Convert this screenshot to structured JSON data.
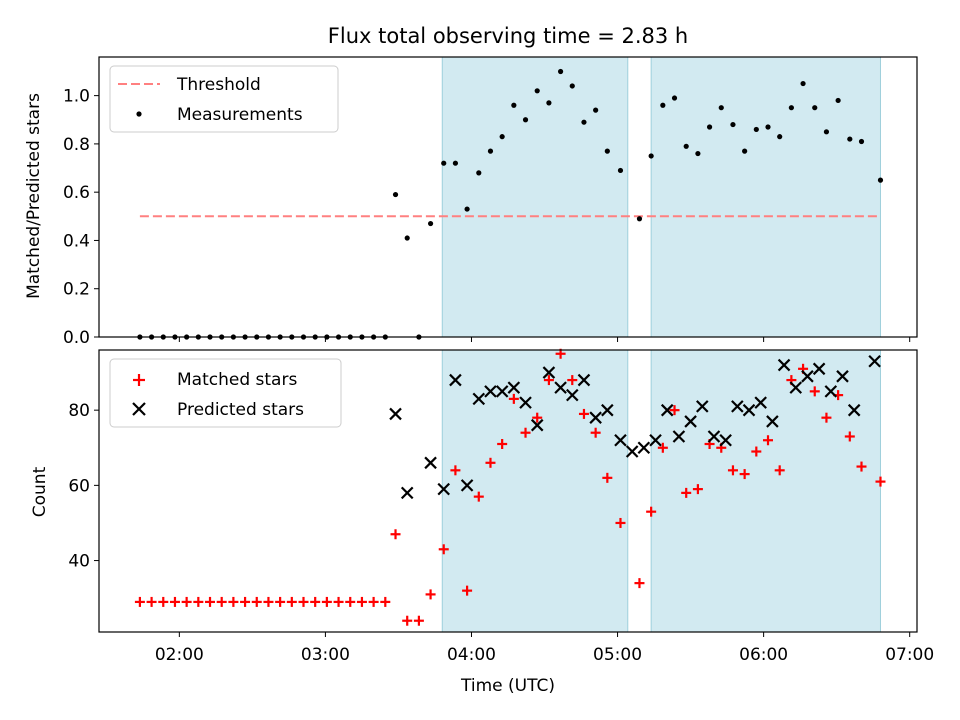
{
  "chart_data": {
    "type": "scatter",
    "title": "Flux total observing time = 2.83 h",
    "x_unit": "hours UTC (decimal)",
    "xlabel": "Time (UTC)",
    "xlim": [
      1.45,
      7.05
    ],
    "x_ticks": [
      2,
      3,
      4,
      5,
      6,
      7
    ],
    "x_tick_labels": [
      "02:00",
      "03:00",
      "04:00",
      "05:00",
      "06:00",
      "07:00"
    ],
    "shaded_intervals": [
      [
        3.8,
        5.07
      ],
      [
        5.23,
        6.8
      ]
    ],
    "shade_color": "#add8e6",
    "panels": [
      {
        "name": "ratio",
        "ylabel": "Matched/Predicted stars",
        "ylim": [
          0,
          1.16
        ],
        "y_ticks": [
          0.0,
          0.2,
          0.4,
          0.6,
          0.8,
          1.0
        ],
        "y_tick_labels": [
          "0.0",
          "0.2",
          "0.4",
          "0.6",
          "0.8",
          "1.0"
        ],
        "legend": [
          "Threshold",
          "Measurements"
        ],
        "threshold": {
          "name": "Threshold",
          "y": 0.5,
          "x_range": [
            1.73,
            6.8
          ],
          "color": "#ff8080"
        },
        "series": [
          {
            "name": "Measurements",
            "marker": "dot",
            "color": "#000000",
            "points": [
              [
                1.73,
                0
              ],
              [
                1.81,
                0
              ],
              [
                1.89,
                0
              ],
              [
                1.97,
                0
              ],
              [
                2.05,
                0
              ],
              [
                2.13,
                0
              ],
              [
                2.21,
                0
              ],
              [
                2.29,
                0
              ],
              [
                2.37,
                0
              ],
              [
                2.45,
                0
              ],
              [
                2.53,
                0
              ],
              [
                2.61,
                0
              ],
              [
                2.69,
                0
              ],
              [
                2.77,
                0
              ],
              [
                2.85,
                0
              ],
              [
                2.93,
                0
              ],
              [
                3.01,
                0
              ],
              [
                3.09,
                0
              ],
              [
                3.17,
                0
              ],
              [
                3.25,
                0
              ],
              [
                3.33,
                0
              ],
              [
                3.41,
                0
              ],
              [
                3.48,
                0.59
              ],
              [
                3.56,
                0.41
              ],
              [
                3.64,
                0
              ],
              [
                3.72,
                0.47
              ],
              [
                3.81,
                0.72
              ],
              [
                3.89,
                0.72
              ],
              [
                3.97,
                0.53
              ],
              [
                4.05,
                0.68
              ],
              [
                4.13,
                0.77
              ],
              [
                4.21,
                0.83
              ],
              [
                4.29,
                0.96
              ],
              [
                4.37,
                0.9
              ],
              [
                4.45,
                1.02
              ],
              [
                4.53,
                0.97
              ],
              [
                4.61,
                1.1
              ],
              [
                4.69,
                1.04
              ],
              [
                4.77,
                0.89
              ],
              [
                4.85,
                0.94
              ],
              [
                4.93,
                0.77
              ],
              [
                5.02,
                0.69
              ],
              [
                5.15,
                0.49
              ],
              [
                5.23,
                0.75
              ],
              [
                5.31,
                0.96
              ],
              [
                5.39,
                0.99
              ],
              [
                5.47,
                0.79
              ],
              [
                5.55,
                0.76
              ],
              [
                5.63,
                0.87
              ],
              [
                5.71,
                0.95
              ],
              [
                5.79,
                0.88
              ],
              [
                5.87,
                0.77
              ],
              [
                5.95,
                0.86
              ],
              [
                6.03,
                0.87
              ],
              [
                6.11,
                0.83
              ],
              [
                6.19,
                0.95
              ],
              [
                6.27,
                1.05
              ],
              [
                6.35,
                0.95
              ],
              [
                6.43,
                0.85
              ],
              [
                6.51,
                0.98
              ],
              [
                6.59,
                0.82
              ],
              [
                6.67,
                0.81
              ],
              [
                6.8,
                0.65
              ]
            ]
          }
        ]
      },
      {
        "name": "counts",
        "ylabel": "Count",
        "ylim": [
          21,
          96
        ],
        "y_ticks": [
          40,
          60,
          80
        ],
        "y_tick_labels": [
          "40",
          "60",
          "80"
        ],
        "legend": [
          "Matched stars",
          "Predicted stars"
        ],
        "series": [
          {
            "name": "Matched stars",
            "marker": "plus",
            "color": "#ff0000",
            "points": [
              [
                1.73,
                29
              ],
              [
                1.81,
                29
              ],
              [
                1.89,
                29
              ],
              [
                1.97,
                29
              ],
              [
                2.05,
                29
              ],
              [
                2.13,
                29
              ],
              [
                2.21,
                29
              ],
              [
                2.29,
                29
              ],
              [
                2.37,
                29
              ],
              [
                2.45,
                29
              ],
              [
                2.53,
                29
              ],
              [
                2.61,
                29
              ],
              [
                2.69,
                29
              ],
              [
                2.77,
                29
              ],
              [
                2.85,
                29
              ],
              [
                2.93,
                29
              ],
              [
                3.01,
                29
              ],
              [
                3.09,
                29
              ],
              [
                3.17,
                29
              ],
              [
                3.25,
                29
              ],
              [
                3.33,
                29
              ],
              [
                3.41,
                29
              ],
              [
                3.48,
                47
              ],
              [
                3.56,
                24
              ],
              [
                3.64,
                24
              ],
              [
                3.72,
                31
              ],
              [
                3.81,
                43
              ],
              [
                3.89,
                64
              ],
              [
                3.97,
                32
              ],
              [
                4.05,
                57
              ],
              [
                4.13,
                66
              ],
              [
                4.21,
                71
              ],
              [
                4.29,
                83
              ],
              [
                4.37,
                74
              ],
              [
                4.45,
                78
              ],
              [
                4.53,
                88
              ],
              [
                4.61,
                95
              ],
              [
                4.69,
                88
              ],
              [
                4.77,
                79
              ],
              [
                4.85,
                74
              ],
              [
                4.93,
                62
              ],
              [
                5.02,
                50
              ],
              [
                5.15,
                34
              ],
              [
                5.23,
                53
              ],
              [
                5.31,
                70
              ],
              [
                5.39,
                80
              ],
              [
                5.47,
                58
              ],
              [
                5.55,
                59
              ],
              [
                5.63,
                71
              ],
              [
                5.71,
                70
              ],
              [
                5.79,
                64
              ],
              [
                5.87,
                63
              ],
              [
                5.95,
                69
              ],
              [
                6.03,
                72
              ],
              [
                6.11,
                64
              ],
              [
                6.19,
                88
              ],
              [
                6.27,
                91
              ],
              [
                6.35,
                85
              ],
              [
                6.43,
                78
              ],
              [
                6.51,
                84
              ],
              [
                6.59,
                73
              ],
              [
                6.67,
                65
              ],
              [
                6.8,
                61
              ]
            ]
          },
          {
            "name": "Predicted stars",
            "marker": "x",
            "color": "#000000",
            "points": [
              [
                3.48,
                79
              ],
              [
                3.56,
                58
              ],
              [
                3.72,
                66
              ],
              [
                3.81,
                59
              ],
              [
                3.89,
                88
              ],
              [
                3.97,
                60
              ],
              [
                4.05,
                83
              ],
              [
                4.13,
                85
              ],
              [
                4.21,
                85
              ],
              [
                4.29,
                86
              ],
              [
                4.37,
                82
              ],
              [
                4.45,
                76
              ],
              [
                4.53,
                90
              ],
              [
                4.61,
                86
              ],
              [
                4.69,
                84
              ],
              [
                4.77,
                88
              ],
              [
                4.85,
                78
              ],
              [
                4.93,
                80
              ],
              [
                5.02,
                72
              ],
              [
                5.1,
                69
              ],
              [
                5.18,
                70
              ],
              [
                5.26,
                72
              ],
              [
                5.34,
                80
              ],
              [
                5.42,
                73
              ],
              [
                5.5,
                77
              ],
              [
                5.58,
                81
              ],
              [
                5.66,
                73
              ],
              [
                5.74,
                72
              ],
              [
                5.82,
                81
              ],
              [
                5.9,
                80
              ],
              [
                5.98,
                82
              ],
              [
                6.06,
                77
              ],
              [
                6.14,
                92
              ],
              [
                6.22,
                86
              ],
              [
                6.3,
                89
              ],
              [
                6.38,
                91
              ],
              [
                6.46,
                85
              ],
              [
                6.54,
                89
              ],
              [
                6.62,
                80
              ],
              [
                6.76,
                93
              ]
            ]
          }
        ]
      }
    ]
  }
}
